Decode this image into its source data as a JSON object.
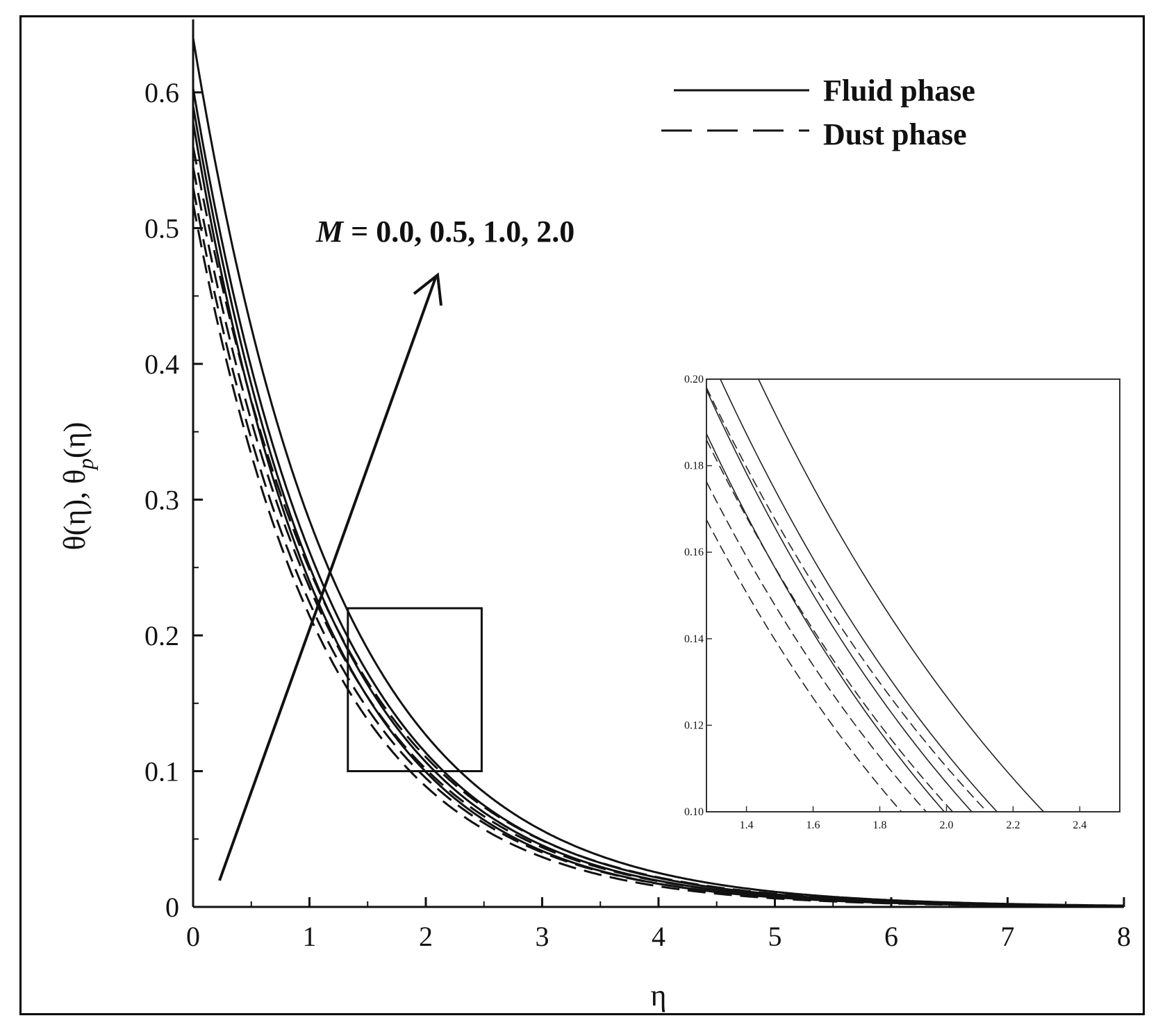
{
  "chart_data": [
    {
      "type": "line",
      "title": "",
      "xlabel": "η",
      "ylabel": "θ(η), θp(η)",
      "xlim": [
        0,
        8
      ],
      "ylim": [
        0,
        0.65
      ],
      "x_ticks": [
        "0",
        "1",
        "2",
        "3",
        "4",
        "5",
        "6",
        "7",
        "8"
      ],
      "y_ticks": [
        "0",
        "0.1",
        "0.2",
        "0.3",
        "0.4",
        "0.5",
        "0.6"
      ],
      "legend": {
        "placement": "top-right",
        "entries": [
          {
            "label": "Fluid phase",
            "style": "solid"
          },
          {
            "label": "Dust phase",
            "style": "dashed"
          }
        ]
      },
      "annotation": {
        "symbol": "M",
        "text": " = 0.0, 0.5, 1.0, 2.0",
        "arrow": "increasing M"
      },
      "zoom_box": {
        "x": [
          1.33,
          2.48
        ],
        "y": [
          0.1,
          0.22
        ]
      },
      "series": [
        {
          "phase": "fluid",
          "style": "solid",
          "M": 0.0,
          "y0": 0.578,
          "decay": 0.88
        },
        {
          "phase": "fluid",
          "style": "solid",
          "M": 0.5,
          "y0": 0.59,
          "decay": 0.855
        },
        {
          "phase": "fluid",
          "style": "solid",
          "M": 1.0,
          "y0": 0.603,
          "decay": 0.835
        },
        {
          "phase": "fluid",
          "style": "solid",
          "M": 2.0,
          "y0": 0.64,
          "decay": 0.81
        },
        {
          "phase": "dust",
          "style": "dashed",
          "M": 0.0,
          "y0": 0.518,
          "decay": 0.882
        },
        {
          "phase": "dust",
          "style": "dashed",
          "M": 0.5,
          "y0": 0.53,
          "decay": 0.86
        },
        {
          "phase": "dust",
          "style": "dashed",
          "M": 1.0,
          "y0": 0.545,
          "decay": 0.84
        },
        {
          "phase": "dust",
          "style": "dashed",
          "M": 2.0,
          "y0": 0.56,
          "decay": 0.812
        }
      ]
    },
    {
      "type": "line",
      "title": "",
      "xlim": [
        1.28,
        2.52
      ],
      "ylim": [
        0.1,
        0.2
      ],
      "x_ticks": [
        "1.4",
        "1.6",
        "1.8",
        "2.0",
        "2.2",
        "2.4"
      ],
      "y_ticks": [
        "0.10",
        "0.12",
        "0.14",
        "0.16",
        "0.18",
        "0.20"
      ]
    }
  ]
}
